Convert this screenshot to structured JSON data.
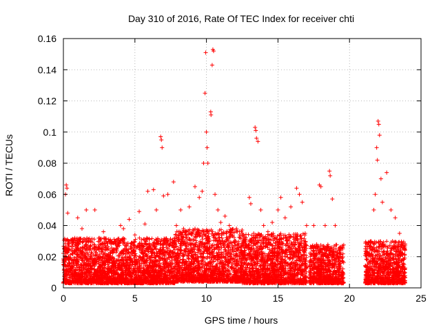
{
  "chart_data": {
    "type": "scatter",
    "title": "Day 310 of 2016, Rate Of TEC Index for receiver chti",
    "xlabel": "GPS time / hours",
    "ylabel": "ROTI / TECUs",
    "xlim": [
      0,
      25
    ],
    "ylim": [
      0,
      0.16
    ],
    "x_ticks": [
      0,
      5,
      10,
      15,
      20,
      25
    ],
    "y_ticks": [
      0,
      0.02,
      0.04,
      0.06,
      0.08,
      0.1,
      0.12,
      0.14,
      0.16
    ],
    "x_tick_labels": [
      "0",
      "5",
      "10",
      "15",
      "20",
      "25"
    ],
    "y_tick_labels": [
      "0",
      "0.02",
      "0.04",
      "0.06",
      "0.08",
      "0.1",
      "0.12",
      "0.14",
      "0.16"
    ],
    "grid": true,
    "marker": "+",
    "marker_color": "#ff0000",
    "series": [
      {
        "name": "ROTI",
        "points": [
          [
            0.05,
            0.012
          ],
          [
            0.1,
            0.02
          ],
          [
            0.15,
            0.06
          ],
          [
            0.2,
            0.066
          ],
          [
            0.25,
            0.064
          ],
          [
            0.3,
            0.048
          ],
          [
            0.35,
            0.03
          ],
          [
            0.4,
            0.018
          ],
          [
            0.6,
            0.022
          ],
          [
            0.8,
            0.032
          ],
          [
            1.0,
            0.045
          ],
          [
            1.3,
            0.038
          ],
          [
            1.6,
            0.05
          ],
          [
            1.9,
            0.03
          ],
          [
            2.2,
            0.05
          ],
          [
            2.5,
            0.025
          ],
          [
            2.8,
            0.036
          ],
          [
            3.3,
            0.03
          ],
          [
            3.7,
            0.028
          ],
          [
            4.0,
            0.04
          ],
          [
            4.2,
            0.038
          ],
          [
            4.6,
            0.044
          ],
          [
            5.0,
            0.034
          ],
          [
            5.3,
            0.049
          ],
          [
            5.7,
            0.041
          ],
          [
            5.9,
            0.062
          ],
          [
            6.3,
            0.063
          ],
          [
            6.5,
            0.05
          ],
          [
            6.8,
            0.097
          ],
          [
            6.85,
            0.095
          ],
          [
            6.9,
            0.09
          ],
          [
            7.0,
            0.059
          ],
          [
            7.3,
            0.06
          ],
          [
            7.7,
            0.068
          ],
          [
            7.9,
            0.04
          ],
          [
            8.2,
            0.05
          ],
          [
            8.4,
            0.038
          ],
          [
            8.8,
            0.052
          ],
          [
            9.2,
            0.065
          ],
          [
            9.5,
            0.058
          ],
          [
            9.7,
            0.062
          ],
          [
            9.8,
            0.08
          ],
          [
            9.9,
            0.125
          ],
          [
            9.95,
            0.151
          ],
          [
            10.0,
            0.1
          ],
          [
            10.05,
            0.09
          ],
          [
            10.1,
            0.08
          ],
          [
            10.3,
            0.113
          ],
          [
            10.32,
            0.111
          ],
          [
            10.4,
            0.143
          ],
          [
            10.45,
            0.153
          ],
          [
            10.5,
            0.152
          ],
          [
            10.6,
            0.06
          ],
          [
            10.8,
            0.05
          ],
          [
            11.0,
            0.042
          ],
          [
            11.3,
            0.046
          ],
          [
            11.6,
            0.04
          ],
          [
            12.1,
            0.038
          ],
          [
            12.5,
            0.035
          ],
          [
            13.0,
            0.058
          ],
          [
            13.1,
            0.054
          ],
          [
            13.4,
            0.103
          ],
          [
            13.45,
            0.101
          ],
          [
            13.5,
            0.096
          ],
          [
            13.6,
            0.094
          ],
          [
            13.8,
            0.05
          ],
          [
            14.0,
            0.04
          ],
          [
            14.3,
            0.036
          ],
          [
            14.6,
            0.042
          ],
          [
            15.0,
            0.05
          ],
          [
            15.2,
            0.058
          ],
          [
            15.5,
            0.045
          ],
          [
            15.9,
            0.052
          ],
          [
            16.3,
            0.064
          ],
          [
            16.5,
            0.06
          ],
          [
            16.7,
            0.055
          ],
          [
            17.0,
            0.04
          ],
          [
            17.5,
            0.04
          ],
          [
            17.9,
            0.066
          ],
          [
            18.0,
            0.065
          ],
          [
            18.3,
            0.04
          ],
          [
            18.6,
            0.075
          ],
          [
            18.65,
            0.072
          ],
          [
            18.8,
            0.057
          ],
          [
            19.0,
            0.04
          ],
          [
            19.2,
            0.02
          ],
          [
            21.5,
            0.03
          ],
          [
            21.7,
            0.05
          ],
          [
            21.8,
            0.06
          ],
          [
            21.9,
            0.09
          ],
          [
            21.95,
            0.082
          ],
          [
            22.0,
            0.107
          ],
          [
            22.05,
            0.105
          ],
          [
            22.1,
            0.098
          ],
          [
            22.2,
            0.07
          ],
          [
            22.3,
            0.055
          ],
          [
            22.6,
            0.074
          ],
          [
            22.9,
            0.05
          ],
          [
            23.2,
            0.045
          ],
          [
            23.5,
            0.035
          ],
          [
            23.7,
            0.015
          ]
        ],
        "bands": [
          {
            "x_range": [
              0.0,
              7.8
            ],
            "y_range": [
              0.003,
              0.032
            ]
          },
          {
            "x_range": [
              7.8,
              12.5
            ],
            "y_range": [
              0.004,
              0.038
            ]
          },
          {
            "x_range": [
              12.5,
              17.0
            ],
            "y_range": [
              0.003,
              0.035
            ]
          },
          {
            "x_range": [
              17.2,
              19.6
            ],
            "y_range": [
              0.003,
              0.028
            ]
          },
          {
            "x_range": [
              21.1,
              23.9
            ],
            "y_range": [
              0.003,
              0.03
            ]
          }
        ]
      }
    ]
  }
}
